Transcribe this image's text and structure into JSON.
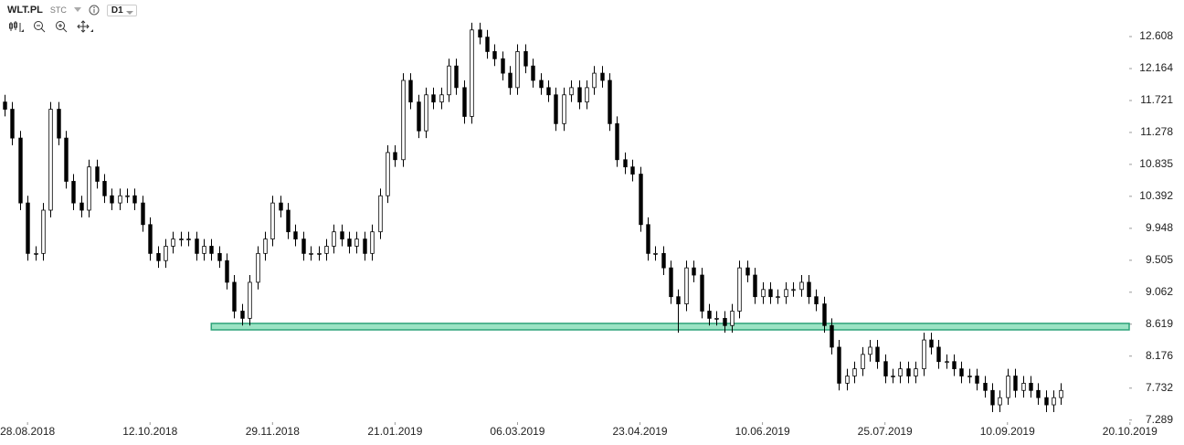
{
  "header": {
    "symbol": "WLT.PL",
    "source": "STC",
    "timeframe": "D1"
  },
  "chart_data": {
    "type": "candlestick",
    "x": [
      -6,
      -4,
      -2,
      0,
      2,
      4,
      6,
      8,
      10,
      12,
      14,
      16,
      18,
      20,
      22,
      24,
      26,
      28,
      30,
      32,
      34,
      36,
      38,
      40,
      42,
      44,
      46,
      48,
      50,
      52,
      54,
      56,
      58,
      60,
      62,
      64,
      66,
      68,
      70,
      72,
      74,
      76,
      78,
      80,
      82,
      84,
      86,
      88,
      90,
      92,
      94,
      96,
      98,
      100,
      102,
      104,
      106,
      108,
      110,
      112,
      114,
      116,
      118,
      120,
      122,
      124,
      126,
      128,
      130,
      132,
      134,
      136,
      138,
      140,
      142,
      144,
      146,
      148,
      150,
      152,
      154,
      156,
      158,
      160,
      162,
      164,
      166,
      168,
      170,
      172,
      174,
      176,
      178,
      180,
      182,
      184,
      186,
      188,
      190,
      192,
      194,
      196,
      198,
      200,
      202,
      204,
      206,
      208,
      210,
      212,
      214,
      216,
      218,
      220,
      222,
      224,
      226,
      228,
      230,
      232,
      234,
      236,
      238,
      240,
      242,
      244,
      246,
      248,
      250,
      252,
      254,
      256,
      258,
      260,
      262,
      264,
      266,
      268,
      270
    ],
    "open": [
      11.7,
      11.6,
      11.2,
      10.3,
      9.6,
      9.6,
      10.2,
      11.6,
      11.2,
      10.6,
      10.3,
      10.2,
      10.8,
      10.6,
      10.4,
      10.3,
      10.4,
      10.4,
      10.3,
      10.0,
      9.6,
      9.5,
      9.7,
      9.8,
      9.8,
      9.8,
      9.6,
      9.7,
      9.6,
      9.5,
      9.2,
      8.8,
      8.7,
      9.2,
      9.6,
      9.8,
      10.3,
      10.2,
      9.9,
      9.8,
      9.6,
      9.6,
      9.6,
      9.7,
      9.9,
      9.8,
      9.7,
      9.8,
      9.6,
      9.9,
      10.4,
      11.0,
      10.9,
      12.0,
      11.7,
      11.3,
      11.8,
      11.7,
      11.8,
      12.2,
      11.9,
      11.5,
      12.7,
      12.6,
      12.4,
      12.3,
      12.1,
      11.9,
      12.4,
      12.2,
      12.0,
      11.9,
      11.8,
      11.4,
      11.8,
      11.9,
      11.7,
      11.9,
      12.1,
      12.0,
      11.4,
      10.9,
      10.8,
      10.7,
      10.0,
      9.6,
      9.6,
      9.4,
      9.0,
      8.9,
      9.4,
      9.3,
      8.8,
      8.7,
      8.7,
      8.6,
      8.8,
      9.4,
      9.3,
      9.0,
      9.1,
      9.0,
      9.0,
      9.1,
      9.1,
      9.2,
      9.0,
      8.9,
      8.6,
      8.3,
      7.8,
      7.9,
      8.0,
      8.2,
      8.3,
      8.1,
      7.9,
      7.9,
      8.0,
      7.9,
      8.0,
      8.4,
      8.3,
      8.1,
      8.1,
      8.0,
      7.9,
      7.9,
      7.8,
      7.7,
      7.5,
      7.6,
      7.9,
      7.7,
      7.8,
      7.7,
      7.6,
      7.5,
      7.6
    ],
    "high": [
      11.8,
      11.7,
      11.3,
      10.4,
      9.7,
      10.3,
      11.7,
      11.7,
      11.3,
      10.7,
      10.4,
      10.9,
      10.9,
      10.7,
      10.5,
      10.5,
      10.5,
      10.5,
      10.4,
      10.1,
      9.7,
      9.8,
      9.9,
      9.9,
      9.9,
      9.9,
      9.8,
      9.8,
      9.7,
      9.6,
      9.3,
      8.9,
      9.3,
      9.7,
      9.9,
      10.4,
      10.4,
      10.3,
      10.0,
      9.9,
      9.7,
      9.7,
      9.8,
      10.0,
      10.0,
      9.9,
      9.9,
      9.9,
      10.0,
      10.5,
      11.1,
      11.1,
      12.1,
      12.1,
      11.8,
      11.9,
      11.9,
      11.9,
      12.3,
      12.3,
      12.0,
      12.8,
      12.8,
      12.7,
      12.5,
      12.4,
      12.2,
      12.5,
      12.5,
      12.3,
      12.1,
      12.0,
      11.9,
      11.9,
      12.0,
      12.0,
      12.0,
      12.2,
      12.2,
      12.1,
      11.5,
      11.0,
      10.9,
      10.8,
      10.1,
      9.7,
      9.7,
      9.5,
      9.1,
      9.5,
      9.5,
      9.4,
      8.9,
      8.8,
      8.8,
      8.9,
      9.5,
      9.5,
      9.4,
      9.2,
      9.2,
      9.1,
      9.2,
      9.2,
      9.3,
      9.3,
      9.1,
      9.0,
      8.7,
      8.4,
      8.0,
      8.1,
      8.3,
      8.4,
      8.4,
      8.2,
      8.0,
      8.1,
      8.1,
      8.1,
      8.5,
      8.5,
      8.4,
      8.2,
      8.2,
      8.1,
      8.0,
      8.0,
      7.9,
      7.8,
      7.7,
      8.0,
      8.0,
      7.9,
      7.9,
      7.8,
      7.7,
      7.7,
      7.8
    ],
    "low": [
      11.5,
      11.1,
      10.2,
      9.5,
      9.5,
      9.5,
      10.1,
      11.1,
      10.5,
      10.2,
      10.1,
      10.1,
      10.5,
      10.3,
      10.2,
      10.2,
      10.3,
      10.2,
      9.9,
      9.5,
      9.4,
      9.4,
      9.6,
      9.7,
      9.7,
      9.5,
      9.5,
      9.5,
      9.4,
      9.1,
      8.7,
      8.6,
      8.6,
      9.1,
      9.5,
      9.7,
      10.1,
      9.8,
      9.7,
      9.5,
      9.5,
      9.5,
      9.5,
      9.6,
      9.7,
      9.6,
      9.6,
      9.5,
      9.5,
      9.8,
      10.3,
      10.8,
      10.8,
      11.6,
      11.2,
      11.2,
      11.6,
      11.6,
      11.7,
      11.8,
      11.4,
      11.4,
      12.5,
      12.3,
      12.2,
      12.0,
      11.8,
      11.8,
      12.1,
      11.9,
      11.8,
      11.7,
      11.3,
      11.3,
      11.7,
      11.6,
      11.6,
      11.8,
      11.9,
      11.3,
      10.8,
      10.7,
      10.6,
      9.9,
      9.5,
      9.5,
      9.3,
      8.9,
      8.5,
      8.8,
      9.2,
      8.7,
      8.6,
      8.6,
      8.5,
      8.5,
      8.7,
      9.2,
      8.9,
      8.9,
      8.9,
      8.9,
      8.9,
      9.0,
      9.0,
      8.9,
      8.8,
      8.5,
      8.2,
      7.7,
      7.7,
      7.8,
      7.9,
      8.1,
      8.0,
      7.8,
      7.8,
      7.8,
      7.8,
      7.8,
      7.9,
      8.2,
      8.0,
      8.0,
      7.9,
      7.8,
      7.8,
      7.7,
      7.6,
      7.4,
      7.4,
      7.5,
      7.6,
      7.6,
      7.6,
      7.5,
      7.4,
      7.4,
      7.5
    ],
    "close": [
      11.6,
      11.2,
      10.3,
      9.6,
      9.6,
      10.2,
      11.6,
      11.2,
      10.6,
      10.3,
      10.2,
      10.8,
      10.6,
      10.4,
      10.3,
      10.4,
      10.4,
      10.3,
      10.0,
      9.6,
      9.5,
      9.7,
      9.8,
      9.8,
      9.8,
      9.6,
      9.7,
      9.6,
      9.5,
      9.2,
      8.8,
      8.7,
      9.2,
      9.6,
      9.8,
      10.3,
      10.2,
      9.9,
      9.8,
      9.6,
      9.6,
      9.6,
      9.7,
      9.9,
      9.8,
      9.7,
      9.8,
      9.6,
      9.9,
      10.4,
      11.0,
      10.9,
      12.0,
      11.7,
      11.3,
      11.8,
      11.7,
      11.8,
      12.2,
      11.9,
      11.5,
      12.7,
      12.6,
      12.4,
      12.3,
      12.1,
      11.9,
      12.4,
      12.2,
      12.0,
      11.9,
      11.8,
      11.4,
      11.8,
      11.9,
      11.7,
      11.9,
      12.1,
      12.0,
      11.4,
      10.9,
      10.8,
      10.7,
      10.0,
      9.6,
      9.6,
      9.4,
      9.0,
      8.9,
      9.4,
      9.3,
      8.8,
      8.7,
      8.7,
      8.6,
      8.8,
      9.4,
      9.3,
      9.0,
      9.1,
      9.0,
      9.0,
      9.1,
      9.1,
      9.2,
      9.0,
      8.9,
      8.6,
      8.3,
      7.8,
      7.9,
      8.0,
      8.2,
      8.3,
      8.1,
      7.9,
      7.9,
      8.0,
      7.9,
      8.0,
      8.4,
      8.3,
      8.1,
      8.1,
      8.0,
      7.9,
      7.9,
      7.8,
      7.7,
      7.5,
      7.6,
      7.9,
      7.7,
      7.8,
      7.7,
      7.6,
      7.5,
      7.6,
      7.7
    ],
    "up_color": "#ffffff",
    "down_color": "#000000",
    "outline_color": "#000000",
    "xlim": [
      -7.2,
      287.8
    ],
    "xticks": [
      {
        "value": 0,
        "label": "28.08.2018"
      },
      {
        "value": 32,
        "label": "12.10.2018"
      },
      {
        "value": 64,
        "label": "29.11.2018"
      },
      {
        "value": 96,
        "label": "21.01.2019"
      },
      {
        "value": 128,
        "label": "06.03.2019"
      },
      {
        "value": 160,
        "label": "23.04.2019"
      },
      {
        "value": 192,
        "label": "10.06.2019"
      },
      {
        "value": 224,
        "label": "25.07.2019"
      },
      {
        "value": 256,
        "label": "10.09.2019"
      },
      {
        "value": 288,
        "label": "20.10.2019"
      }
    ],
    "ylim": [
      7.26,
      13.115
    ],
    "yticks": [
      7.289,
      7.732,
      8.176,
      8.619,
      9.062,
      9.505,
      9.948,
      10.392,
      10.835,
      11.278,
      11.721,
      12.164,
      12.608
    ],
    "zone": {
      "from": 8.54,
      "to": 8.63,
      "x": [
        48,
        287.8
      ],
      "color": "#9be3c4",
      "border": "#2fa37a"
    }
  }
}
